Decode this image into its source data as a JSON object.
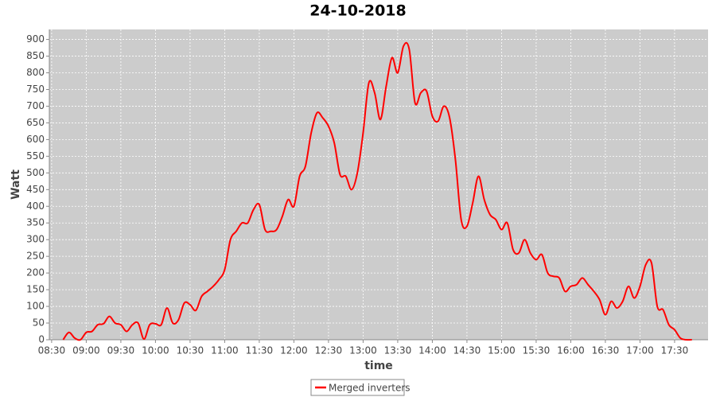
{
  "chart_data": {
    "type": "line",
    "title": "24-10-2018",
    "x_label": "time",
    "y_label": "Watt",
    "x": [
      "08:40",
      "08:45",
      "08:50",
      "08:55",
      "09:00",
      "09:05",
      "09:10",
      "09:15",
      "09:20",
      "09:25",
      "09:30",
      "09:35",
      "09:40",
      "09:45",
      "09:50",
      "09:55",
      "10:00",
      "10:05",
      "10:10",
      "10:15",
      "10:20",
      "10:25",
      "10:30",
      "10:35",
      "10:40",
      "10:45",
      "10:50",
      "10:55",
      "11:00",
      "11:05",
      "11:10",
      "11:15",
      "11:20",
      "11:25",
      "11:30",
      "11:35",
      "11:40",
      "11:45",
      "11:50",
      "11:55",
      "12:00",
      "12:05",
      "12:10",
      "12:15",
      "12:20",
      "12:25",
      "12:30",
      "12:35",
      "12:40",
      "12:45",
      "12:50",
      "12:55",
      "13:00",
      "13:05",
      "13:10",
      "13:15",
      "13:20",
      "13:25",
      "13:30",
      "13:35",
      "13:40",
      "13:45",
      "13:50",
      "13:55",
      "14:00",
      "14:05",
      "14:10",
      "14:15",
      "14:20",
      "14:25",
      "14:30",
      "14:35",
      "14:40",
      "14:45",
      "14:50",
      "14:55",
      "15:00",
      "15:05",
      "15:10",
      "15:15",
      "15:20",
      "15:25",
      "15:30",
      "15:35",
      "15:40",
      "15:45",
      "15:50",
      "15:55",
      "16:00",
      "16:05",
      "16:10",
      "16:15",
      "16:20",
      "16:25",
      "16:30",
      "16:35",
      "16:40",
      "16:45",
      "16:50",
      "16:55",
      "17:00",
      "17:05",
      "17:10",
      "17:15",
      "17:20",
      "17:25",
      "17:30",
      "17:35",
      "17:40",
      "17:45"
    ],
    "series": [
      {
        "name": "Merged inverters",
        "color": "#ff0000",
        "values": [
          0,
          22,
          5,
          0,
          22,
          25,
          45,
          48,
          70,
          50,
          45,
          25,
          45,
          50,
          2,
          45,
          48,
          45,
          95,
          50,
          60,
          110,
          105,
          88,
          130,
          145,
          160,
          180,
          210,
          300,
          325,
          350,
          350,
          390,
          405,
          330,
          325,
          330,
          370,
          420,
          400,
          490,
          520,
          620,
          680,
          665,
          640,
          590,
          495,
          490,
          450,
          500,
          620,
          770,
          740,
          660,
          760,
          845,
          800,
          880,
          870,
          710,
          740,
          745,
          670,
          655,
          700,
          665,
          540,
          360,
          340,
          410,
          490,
          420,
          375,
          360,
          330,
          350,
          270,
          260,
          300,
          260,
          240,
          255,
          200,
          190,
          185,
          145,
          160,
          165,
          185,
          165,
          145,
          120,
          75,
          115,
          95,
          115,
          160,
          125,
          160,
          225,
          230,
          100,
          90,
          45,
          30,
          5,
          0,
          0
        ]
      }
    ],
    "xlim": [
      "08:28",
      "17:59"
    ],
    "xticks": [
      "08:30",
      "09:00",
      "09:30",
      "10:00",
      "10:30",
      "11:00",
      "11:30",
      "12:00",
      "12:30",
      "13:00",
      "13:30",
      "14:00",
      "14:30",
      "15:00",
      "15:30",
      "16:00",
      "16:30",
      "17:00",
      "17:30"
    ],
    "ylim": [
      0,
      930
    ],
    "yticks": [
      0,
      50,
      100,
      150,
      200,
      250,
      300,
      350,
      400,
      450,
      500,
      550,
      600,
      650,
      700,
      750,
      800,
      850,
      900
    ],
    "grid": true
  }
}
